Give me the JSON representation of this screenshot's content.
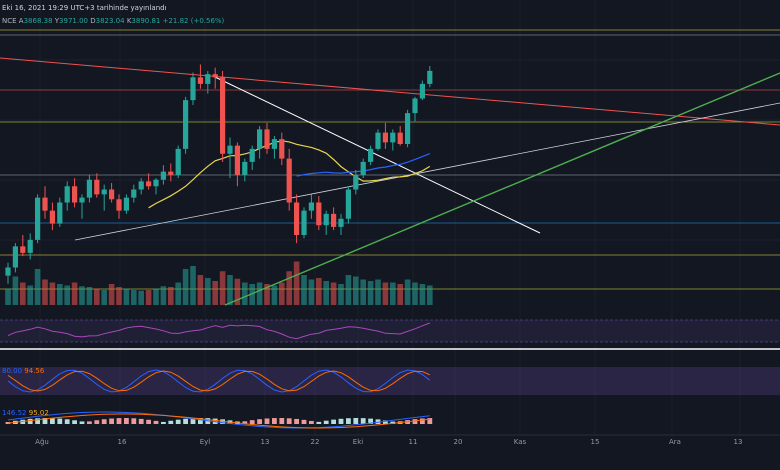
{
  "header": {
    "timestamp": "Eki 16, 2021 19:29 UTC+3 tarihinde yayınlandı",
    "symbol_suffix": "NCE",
    "o_label": "A",
    "o_value": "3868.38",
    "h_label": "Y",
    "h_value": "3971.00",
    "l_label": "D",
    "l_value": "3823.04",
    "c_label": "K",
    "c_value": "3890.81",
    "change": "+21.82 (+0.56%)"
  },
  "stoch_rsi_readout": {
    "k": "80.00",
    "d": "94.56"
  },
  "macd_readout": {
    "v1": "146.52",
    "v2": "95.02"
  },
  "chart_data": {
    "type": "candlestick",
    "x_tick_labels": [
      "Ağu",
      "16",
      "Eyl",
      "13",
      "22",
      "Eki",
      "11",
      "20",
      "Kas",
      "15",
      "Ara",
      "13"
    ],
    "candles": [
      [
        2700,
        2780,
        2650,
        2750
      ],
      [
        2750,
        2900,
        2720,
        2880
      ],
      [
        2880,
        2950,
        2820,
        2840
      ],
      [
        2840,
        2960,
        2800,
        2920
      ],
      [
        2920,
        3200,
        2900,
        3180
      ],
      [
        3180,
        3250,
        3050,
        3100
      ],
      [
        3100,
        3150,
        2980,
        3020
      ],
      [
        3020,
        3180,
        3000,
        3150
      ],
      [
        3150,
        3280,
        3100,
        3250
      ],
      [
        3250,
        3300,
        3120,
        3150
      ],
      [
        3150,
        3200,
        3050,
        3180
      ],
      [
        3180,
        3320,
        3150,
        3290
      ],
      [
        3290,
        3330,
        3180,
        3200
      ],
      [
        3200,
        3260,
        3100,
        3230
      ],
      [
        3230,
        3270,
        3150,
        3170
      ],
      [
        3170,
        3200,
        3050,
        3100
      ],
      [
        3100,
        3200,
        3080,
        3180
      ],
      [
        3180,
        3260,
        3150,
        3230
      ],
      [
        3230,
        3300,
        3200,
        3280
      ],
      [
        3280,
        3330,
        3230,
        3250
      ],
      [
        3250,
        3300,
        3200,
        3290
      ],
      [
        3290,
        3380,
        3260,
        3340
      ],
      [
        3340,
        3390,
        3280,
        3320
      ],
      [
        3320,
        3500,
        3300,
        3480
      ],
      [
        3480,
        3800,
        3450,
        3780
      ],
      [
        3780,
        3950,
        3750,
        3920
      ],
      [
        3920,
        4000,
        3850,
        3880
      ],
      [
        3880,
        3960,
        3820,
        3940
      ],
      [
        3940,
        3980,
        3850,
        3920
      ],
      [
        3920,
        3960,
        3400,
        3450
      ],
      [
        3450,
        3550,
        3300,
        3500
      ],
      [
        3500,
        3520,
        3250,
        3320
      ],
      [
        3320,
        3420,
        3280,
        3400
      ],
      [
        3400,
        3500,
        3350,
        3480
      ],
      [
        3480,
        3620,
        3420,
        3600
      ],
      [
        3600,
        3640,
        3450,
        3480
      ],
      [
        3480,
        3560,
        3420,
        3540
      ],
      [
        3540,
        3580,
        3380,
        3420
      ],
      [
        3420,
        3480,
        3100,
        3150
      ],
      [
        3150,
        3200,
        2900,
        2950
      ],
      [
        2950,
        3120,
        2930,
        3100
      ],
      [
        3100,
        3200,
        3050,
        3150
      ],
      [
        3150,
        3190,
        2980,
        3010
      ],
      [
        3010,
        3100,
        2950,
        3080
      ],
      [
        3080,
        3120,
        2980,
        3000
      ],
      [
        3000,
        3080,
        2950,
        3050
      ],
      [
        3050,
        3250,
        3020,
        3230
      ],
      [
        3230,
        3350,
        3200,
        3320
      ],
      [
        3320,
        3420,
        3300,
        3400
      ],
      [
        3400,
        3500,
        3380,
        3480
      ],
      [
        3480,
        3600,
        3470,
        3580
      ],
      [
        3580,
        3640,
        3480,
        3520
      ],
      [
        3520,
        3600,
        3470,
        3580
      ],
      [
        3580,
        3620,
        3500,
        3510
      ],
      [
        3510,
        3720,
        3490,
        3700
      ],
      [
        3700,
        3800,
        3650,
        3790
      ],
      [
        3790,
        3900,
        3780,
        3880
      ],
      [
        3880,
        3990,
        3860,
        3960
      ]
    ],
    "volume": [
      22,
      38,
      30,
      26,
      48,
      34,
      30,
      28,
      26,
      30,
      25,
      24,
      22,
      20,
      28,
      24,
      22,
      20,
      19,
      20,
      22,
      25,
      24,
      30,
      48,
      52,
      40,
      36,
      32,
      45,
      40,
      35,
      30,
      28,
      30,
      28,
      26,
      30,
      45,
      58,
      40,
      34,
      36,
      32,
      30,
      28,
      40,
      38,
      34,
      32,
      34,
      30,
      30,
      28,
      34,
      30,
      28,
      26
    ],
    "price_range": [
      2550,
      4150
    ]
  }
}
